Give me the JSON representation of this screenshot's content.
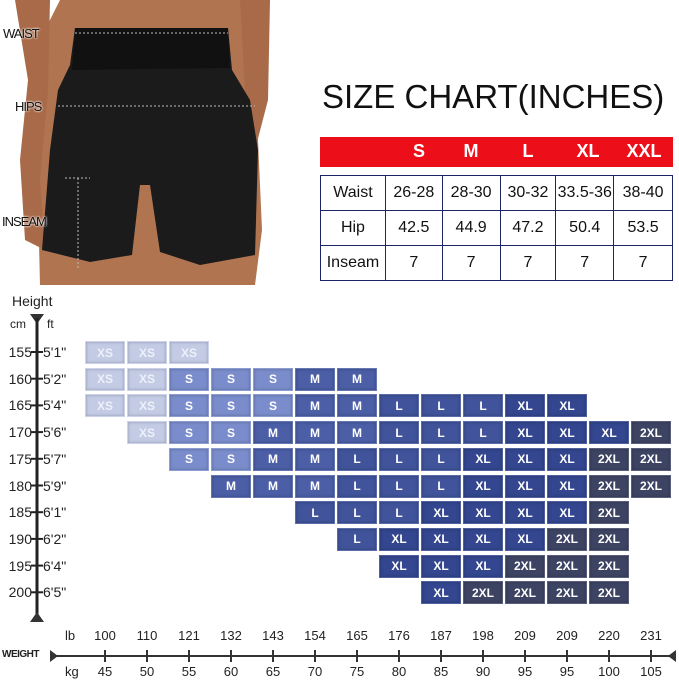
{
  "photo_labels": {
    "waist": "WAIST",
    "hips": "HIPS",
    "inseam": "INSEAM"
  },
  "size_chart": {
    "title": "SIZE CHART(INCHES)",
    "header_color": "#ec0f1a",
    "sizes": [
      "S",
      "M",
      "L",
      "XL",
      "XXL"
    ],
    "rows": [
      {
        "label": "Waist",
        "values": [
          "26-28",
          "28-30",
          "30-32",
          "33.5-36",
          "38-40"
        ]
      },
      {
        "label": "Hip",
        "values": [
          "42.5",
          "44.9",
          "47.2",
          "50.4",
          "53.5"
        ]
      },
      {
        "label": "Inseam",
        "values": [
          "7",
          "7",
          "7",
          "7",
          "7"
        ]
      }
    ]
  },
  "height_axis": {
    "title": "Height",
    "unit_cm": "cm",
    "unit_ft": "ft",
    "cm": [
      "155",
      "160",
      "165",
      "170",
      "175",
      "180",
      "185",
      "190",
      "195",
      "200"
    ],
    "ft": [
      "5'1\"",
      "5'2\"",
      "5'4\"",
      "5'6\"",
      "5'7\"",
      "5'9\"",
      "6'1\"",
      "6'2\"",
      "6'4\"",
      "6'5\""
    ]
  },
  "weight_axis": {
    "title": "WEIGHT",
    "unit_lb": "lb",
    "unit_kg": "kg",
    "lb": [
      "100",
      "110",
      "121",
      "132",
      "143",
      "154",
      "165",
      "176",
      "187",
      "198",
      "209",
      "209",
      "220",
      "231"
    ],
    "kg": [
      "45",
      "50",
      "55",
      "60",
      "65",
      "70",
      "75",
      "80",
      "85",
      "90",
      "95",
      "95",
      "100",
      "105"
    ]
  },
  "size_colors": {
    "XS": "#c3cbe5",
    "S": "#7a8ccb",
    "M": "#4b5ea6",
    "L": "#40539b",
    "XL": "#33468f",
    "2XL": "#3d4463"
  },
  "size_grid": [
    {
      "start": 0,
      "sizes": [
        "XS",
        "XS",
        "XS"
      ]
    },
    {
      "start": 0,
      "sizes": [
        "XS",
        "XS",
        "S",
        "S",
        "S",
        "M",
        "M"
      ]
    },
    {
      "start": 0,
      "sizes": [
        "XS",
        "XS",
        "S",
        "S",
        "S",
        "M",
        "M",
        "L",
        "L",
        "L",
        "XL",
        "XL"
      ]
    },
    {
      "start": 1,
      "sizes": [
        "XS",
        "S",
        "S",
        "M",
        "M",
        "M",
        "L",
        "L",
        "L",
        "XL",
        "XL",
        "XL",
        "2XL"
      ]
    },
    {
      "start": 2,
      "sizes": [
        "S",
        "S",
        "M",
        "M",
        "L",
        "L",
        "L",
        "XL",
        "XL",
        "XL",
        "2XL",
        "2XL"
      ]
    },
    {
      "start": 3,
      "sizes": [
        "M",
        "M",
        "M",
        "L",
        "L",
        "L",
        "XL",
        "XL",
        "XL",
        "2XL",
        "2XL"
      ]
    },
    {
      "start": 5,
      "sizes": [
        "L",
        "L",
        "L",
        "XL",
        "XL",
        "XL",
        "XL",
        "2XL"
      ]
    },
    {
      "start": 6,
      "sizes": [
        "L",
        "XL",
        "XL",
        "XL",
        "XL",
        "2XL",
        "2XL"
      ]
    },
    {
      "start": 7,
      "sizes": [
        "XL",
        "XL",
        "XL",
        "2XL",
        "2XL",
        "2XL"
      ]
    },
    {
      "start": 8,
      "sizes": [
        "XL",
        "2XL",
        "2XL",
        "2XL",
        "2XL"
      ]
    }
  ]
}
